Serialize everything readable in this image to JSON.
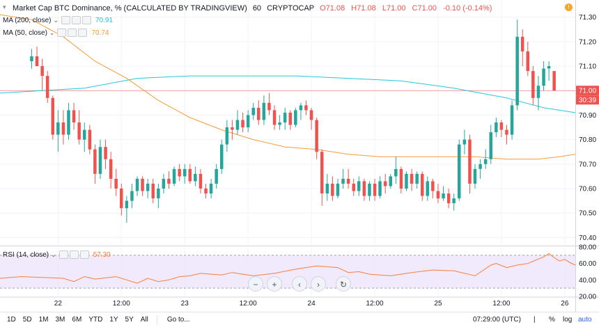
{
  "header": {
    "title": "Market Cap BTC Dominance, % (CALCULATED BY TRADINGVIEW)",
    "interval": "60",
    "source": "CRYPTOCAP",
    "ohlc": [
      "O71.08",
      "H71.08",
      "L71.00",
      "C71.00",
      "-0.10 (-0.14%)"
    ]
  },
  "indicators": [
    {
      "label": "MA (200, close)",
      "value": "70.91",
      "color": "#26c6da"
    },
    {
      "label": "MA (50, close)",
      "value": "70.74",
      "color": "#f59b3b"
    }
  ],
  "rsi": {
    "label": "RSI (14, close)",
    "value": "57.30",
    "color": "#f57f3b"
  },
  "price_axis": {
    "ticks": [
      "71.30",
      "71.20",
      "71.10",
      "71.00",
      "70.90",
      "70.80",
      "70.70",
      "70.60",
      "70.50",
      "70.40"
    ],
    "last_price": "71.00",
    "countdown": "30:39"
  },
  "rsi_axis": {
    "ticks": [
      "80.00",
      "60.00",
      "40.00",
      "20.00"
    ]
  },
  "time_axis": {
    "labels": [
      "22",
      "12:00",
      "23",
      "12:00",
      "24",
      "12:00",
      "25",
      "12:00",
      "26",
      "12:00"
    ]
  },
  "bottom_bar": {
    "timeframes": [
      "1D",
      "5D",
      "1M",
      "3M",
      "6M",
      "YTD",
      "1Y",
      "5Y",
      "All"
    ],
    "goto": "Go to...",
    "clock": "07:29:00 (UTC)",
    "percent": "%",
    "log": "log",
    "auto": "auto"
  },
  "controls": [
    "zoom-out",
    "zoom-in",
    "scroll-left",
    "scroll-right",
    "reset"
  ],
  "colors": {
    "up": "#26a69a",
    "down": "#ef5350",
    "ma200": "#26c6da",
    "ma50": "#f59b3b",
    "rsi": "#f57f3b",
    "rsi_band": "#ede4fb"
  },
  "chart_data": {
    "type": "candlestick",
    "ylim": [
      70.37,
      71.37
    ],
    "x_range": [
      -6,
      103
    ],
    "x_labels": [
      {
        "x": 5,
        "label": "22"
      },
      {
        "x": 17,
        "label": "12:00"
      },
      {
        "x": 29,
        "label": "23"
      },
      {
        "x": 41,
        "label": "12:00"
      },
      {
        "x": 53,
        "label": "24"
      },
      {
        "x": 65,
        "label": "12:00"
      },
      {
        "x": 77,
        "label": "25"
      },
      {
        "x": 89,
        "label": "12:00"
      },
      {
        "x": 101,
        "label": "26"
      },
      {
        "x": 113,
        "label": "12:00"
      }
    ],
    "candles": [
      [
        71.12,
        71.17,
        71.09,
        71.14
      ],
      [
        71.14,
        71.18,
        71.1,
        71.1
      ],
      [
        71.1,
        71.13,
        71.0,
        71.06
      ],
      [
        71.06,
        71.08,
        70.95,
        70.97
      ],
      [
        70.97,
        70.98,
        70.8,
        70.82
      ],
      [
        70.82,
        70.92,
        70.75,
        70.87
      ],
      [
        70.87,
        70.92,
        70.78,
        70.82
      ],
      [
        70.82,
        70.95,
        70.8,
        70.92
      ],
      [
        70.92,
        70.95,
        70.84,
        70.87
      ],
      [
        70.87,
        70.92,
        70.78,
        70.8
      ],
      [
        70.8,
        70.87,
        70.75,
        70.84
      ],
      [
        70.84,
        70.86,
        70.74,
        70.76
      ],
      [
        70.76,
        70.78,
        70.62,
        70.66
      ],
      [
        70.66,
        70.8,
        70.64,
        70.77
      ],
      [
        70.77,
        70.8,
        70.68,
        70.72
      ],
      [
        70.72,
        70.75,
        70.6,
        70.64
      ],
      [
        70.64,
        70.68,
        70.57,
        70.6
      ],
      [
        70.6,
        70.62,
        70.49,
        70.52
      ],
      [
        70.52,
        70.57,
        70.46,
        70.55
      ],
      [
        70.55,
        70.62,
        70.52,
        70.59
      ],
      [
        70.59,
        70.65,
        70.57,
        70.64
      ],
      [
        70.64,
        70.65,
        70.57,
        70.59
      ],
      [
        70.59,
        70.64,
        70.56,
        70.62
      ],
      [
        70.62,
        70.64,
        70.54,
        70.56
      ],
      [
        70.56,
        70.62,
        70.52,
        70.6
      ],
      [
        70.6,
        70.66,
        70.58,
        70.64
      ],
      [
        70.64,
        70.67,
        70.6,
        70.62
      ],
      [
        70.62,
        70.69,
        70.61,
        70.68
      ],
      [
        70.68,
        70.7,
        70.63,
        70.65
      ],
      [
        70.65,
        70.7,
        70.62,
        70.68
      ],
      [
        70.68,
        70.7,
        70.62,
        70.63
      ],
      [
        70.63,
        70.69,
        70.61,
        70.66
      ],
      [
        70.66,
        70.68,
        70.58,
        70.6
      ],
      [
        70.6,
        70.62,
        70.56,
        70.58
      ],
      [
        70.58,
        70.64,
        70.56,
        70.62
      ],
      [
        70.62,
        70.7,
        70.6,
        70.68
      ],
      [
        70.68,
        70.8,
        70.66,
        70.78
      ],
      [
        70.78,
        70.88,
        70.75,
        70.85
      ],
      [
        70.85,
        70.88,
        70.8,
        70.84
      ],
      [
        70.84,
        70.92,
        70.82,
        70.88
      ],
      [
        70.88,
        70.91,
        70.83,
        70.85
      ],
      [
        70.85,
        70.92,
        70.83,
        70.9
      ],
      [
        70.9,
        70.95,
        70.88,
        70.93
      ],
      [
        70.93,
        70.96,
        70.86,
        70.88
      ],
      [
        70.88,
        70.98,
        70.86,
        70.95
      ],
      [
        70.95,
        70.99,
        70.9,
        70.92
      ],
      [
        70.92,
        70.94,
        70.84,
        70.86
      ],
      [
        70.86,
        70.9,
        70.84,
        70.87
      ],
      [
        70.87,
        70.93,
        70.84,
        70.91
      ],
      [
        70.91,
        70.92,
        70.84,
        70.86
      ],
      [
        70.86,
        70.93,
        70.85,
        70.92
      ],
      [
        70.92,
        70.95,
        70.88,
        70.94
      ],
      [
        70.94,
        70.96,
        70.9,
        70.92
      ],
      [
        70.92,
        70.93,
        70.84,
        70.88
      ],
      [
        70.88,
        70.89,
        70.72,
        70.75
      ],
      [
        70.75,
        70.76,
        70.53,
        70.58
      ],
      [
        70.58,
        70.66,
        70.55,
        70.62
      ],
      [
        70.62,
        70.65,
        70.55,
        70.57
      ],
      [
        70.57,
        70.64,
        70.56,
        70.62
      ],
      [
        70.62,
        70.68,
        70.6,
        70.64
      ],
      [
        70.64,
        70.68,
        70.6,
        70.62
      ],
      [
        70.62,
        70.64,
        70.57,
        70.59
      ],
      [
        70.59,
        70.65,
        70.57,
        70.63
      ],
      [
        70.63,
        70.64,
        70.55,
        70.57
      ],
      [
        70.57,
        70.63,
        70.55,
        70.62
      ],
      [
        70.62,
        70.64,
        70.55,
        70.57
      ],
      [
        70.57,
        70.65,
        70.56,
        70.63
      ],
      [
        70.63,
        70.66,
        70.58,
        70.61
      ],
      [
        70.61,
        70.66,
        70.6,
        70.65
      ],
      [
        70.65,
        70.73,
        70.62,
        70.68
      ],
      [
        70.68,
        70.69,
        70.58,
        70.6
      ],
      [
        70.6,
        70.67,
        70.59,
        70.66
      ],
      [
        70.66,
        70.68,
        70.59,
        70.62
      ],
      [
        70.62,
        70.67,
        70.6,
        70.66
      ],
      [
        70.66,
        70.67,
        70.55,
        70.57
      ],
      [
        70.57,
        70.65,
        70.55,
        70.63
      ],
      [
        70.63,
        70.64,
        70.56,
        70.59
      ],
      [
        70.59,
        70.62,
        70.54,
        70.56
      ],
      [
        70.56,
        70.61,
        70.55,
        70.58
      ],
      [
        70.58,
        70.6,
        70.52,
        70.54
      ],
      [
        70.54,
        70.58,
        70.51,
        70.56
      ],
      [
        70.56,
        70.8,
        70.55,
        70.78
      ],
      [
        70.78,
        70.84,
        70.74,
        70.8
      ],
      [
        70.8,
        70.82,
        70.58,
        70.62
      ],
      [
        70.62,
        70.7,
        70.6,
        70.68
      ],
      [
        70.68,
        70.72,
        70.64,
        70.7
      ],
      [
        70.7,
        70.76,
        70.68,
        70.72
      ],
      [
        70.72,
        70.86,
        70.7,
        70.83
      ],
      [
        70.83,
        70.89,
        70.81,
        70.87
      ],
      [
        70.87,
        70.88,
        70.81,
        70.84
      ],
      [
        70.84,
        70.86,
        70.78,
        70.82
      ],
      [
        70.82,
        70.96,
        70.8,
        70.94
      ],
      [
        70.94,
        71.29,
        70.92,
        71.22
      ],
      [
        71.22,
        71.25,
        71.1,
        71.16
      ],
      [
        71.16,
        71.2,
        71.06,
        71.08
      ],
      [
        71.08,
        71.1,
        70.94,
        70.97
      ],
      [
        70.97,
        71.06,
        70.92,
        71.02
      ],
      [
        71.02,
        71.12,
        71.0,
        71.09
      ],
      [
        71.09,
        71.12,
        71.04,
        71.1
      ],
      [
        71.08,
        71.08,
        71.0,
        71.0
      ]
    ],
    "ma200": [
      [
        -6,
        70.99
      ],
      [
        10,
        71.01
      ],
      [
        20,
        71.05
      ],
      [
        30,
        71.06
      ],
      [
        40,
        71.06
      ],
      [
        50,
        71.06
      ],
      [
        60,
        71.05
      ],
      [
        70,
        71.04
      ],
      [
        80,
        71.01
      ],
      [
        90,
        70.97
      ],
      [
        97,
        70.93
      ],
      [
        103,
        70.91
      ]
    ],
    "ma50": [
      [
        -6,
        71.31
      ],
      [
        0,
        71.29
      ],
      [
        6,
        71.22
      ],
      [
        12,
        71.12
      ],
      [
        18,
        71.05
      ],
      [
        24,
        70.96
      ],
      [
        30,
        70.89
      ],
      [
        36,
        70.84
      ],
      [
        42,
        70.8
      ],
      [
        48,
        70.77
      ],
      [
        54,
        70.76
      ],
      [
        60,
        70.74
      ],
      [
        66,
        70.73
      ],
      [
        72,
        70.73
      ],
      [
        78,
        70.73
      ],
      [
        84,
        70.73
      ],
      [
        90,
        70.72
      ],
      [
        96,
        70.72
      ],
      [
        100,
        70.73
      ],
      [
        103,
        70.74
      ]
    ],
    "rsi": {
      "ylim": [
        20,
        80
      ],
      "band": [
        30,
        70
      ],
      "values": [
        [
          -6,
          42
        ],
        [
          -2,
          44
        ],
        [
          2,
          43
        ],
        [
          6,
          42
        ],
        [
          8,
          38
        ],
        [
          10,
          44
        ],
        [
          12,
          41
        ],
        [
          16,
          44
        ],
        [
          18,
          40
        ],
        [
          20,
          36
        ],
        [
          22,
          42
        ],
        [
          24,
          38
        ],
        [
          26,
          40
        ],
        [
          28,
          44
        ],
        [
          30,
          45
        ],
        [
          32,
          48
        ],
        [
          36,
          46
        ],
        [
          38,
          49
        ],
        [
          40,
          47
        ],
        [
          42,
          45
        ],
        [
          46,
          48
        ],
        [
          50,
          53
        ],
        [
          54,
          57
        ],
        [
          58,
          55
        ],
        [
          60,
          49
        ],
        [
          62,
          50
        ],
        [
          64,
          47
        ],
        [
          68,
          45
        ],
        [
          72,
          49
        ],
        [
          76,
          52
        ],
        [
          80,
          51
        ],
        [
          84,
          45
        ],
        [
          87,
          58
        ],
        [
          88,
          60
        ],
        [
          90,
          55
        ],
        [
          92,
          58
        ],
        [
          94,
          60
        ],
        [
          97,
          68
        ],
        [
          98,
          72
        ],
        [
          99,
          67
        ],
        [
          100,
          63
        ],
        [
          101,
          65
        ],
        [
          102,
          61
        ],
        [
          103,
          58
        ]
      ]
    }
  }
}
